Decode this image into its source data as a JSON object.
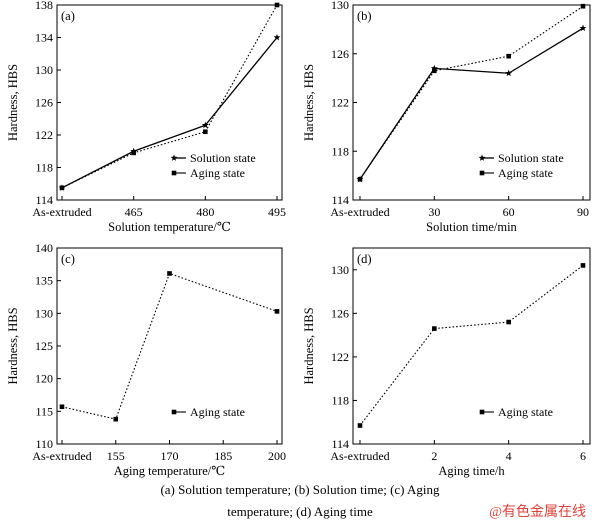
{
  "chart_data": [
    {
      "type": "line",
      "panel_label": "(a)",
      "xlabel": "Solution temperature/℃",
      "ylabel": "Hardness, HBS",
      "categories": [
        "As-extruded",
        "465",
        "480",
        "495"
      ],
      "ylim": [
        114,
        138
      ],
      "yticks": [
        "114",
        "118",
        "122",
        "126",
        "130",
        "134",
        "138"
      ],
      "legend_position": "lower-right",
      "series": [
        {
          "name": "Solution state",
          "style": "solid",
          "marker": "star",
          "values": [
            115.5,
            120.0,
            123.2,
            134.0
          ]
        },
        {
          "name": "Aging state",
          "style": "dotted",
          "marker": "square",
          "values": [
            115.5,
            119.8,
            122.4,
            138.0
          ]
        }
      ]
    },
    {
      "type": "line",
      "panel_label": "(b)",
      "xlabel": "Solution time/min",
      "ylabel": "Hardness, HBS",
      "categories": [
        "As-extruded",
        "30",
        "60",
        "90"
      ],
      "ylim": [
        114,
        130
      ],
      "yticks": [
        "114",
        "118",
        "122",
        "126",
        "130"
      ],
      "legend_position": "lower-right",
      "series": [
        {
          "name": "Solution state",
          "style": "solid",
          "marker": "star",
          "values": [
            115.7,
            124.8,
            124.4,
            128.1
          ]
        },
        {
          "name": "Aging state",
          "style": "dotted",
          "marker": "square",
          "values": [
            115.7,
            124.6,
            125.8,
            129.9
          ]
        }
      ]
    },
    {
      "type": "line",
      "panel_label": "(c)",
      "xlabel": "Aging temperature/℃",
      "ylabel": "Hardness, HBS",
      "categories": [
        "As-extruded",
        "155",
        "170",
        "185",
        "200"
      ],
      "ylim": [
        110,
        140
      ],
      "yticks": [
        "110",
        "115",
        "120",
        "125",
        "130",
        "135",
        "140"
      ],
      "legend_position": "lower-right",
      "series": [
        {
          "name": "Aging state",
          "style": "dotted",
          "marker": "square",
          "values": [
            115.7,
            113.8,
            136.1,
            null,
            130.3
          ]
        }
      ]
    },
    {
      "type": "line",
      "panel_label": "(d)",
      "xlabel": "Aging time/h",
      "ylabel": "Hardness, HBS",
      "categories": [
        "As-extruded",
        "2",
        "4",
        "6"
      ],
      "ylim": [
        114,
        132
      ],
      "yticks": [
        "114",
        "118",
        "122",
        "126",
        "130"
      ],
      "legend_position": "lower-right",
      "series": [
        {
          "name": "Aging state",
          "style": "dotted",
          "marker": "square",
          "values": [
            115.7,
            124.6,
            125.2,
            130.4
          ]
        }
      ]
    }
  ],
  "caption": {
    "line1": "(a) Solution temperature; (b) Solution time; (c) Aging",
    "line2": "temperature; (d) Aging time"
  },
  "watermark": {
    "text": "@有色金属在线",
    "color": "#e0413a"
  }
}
